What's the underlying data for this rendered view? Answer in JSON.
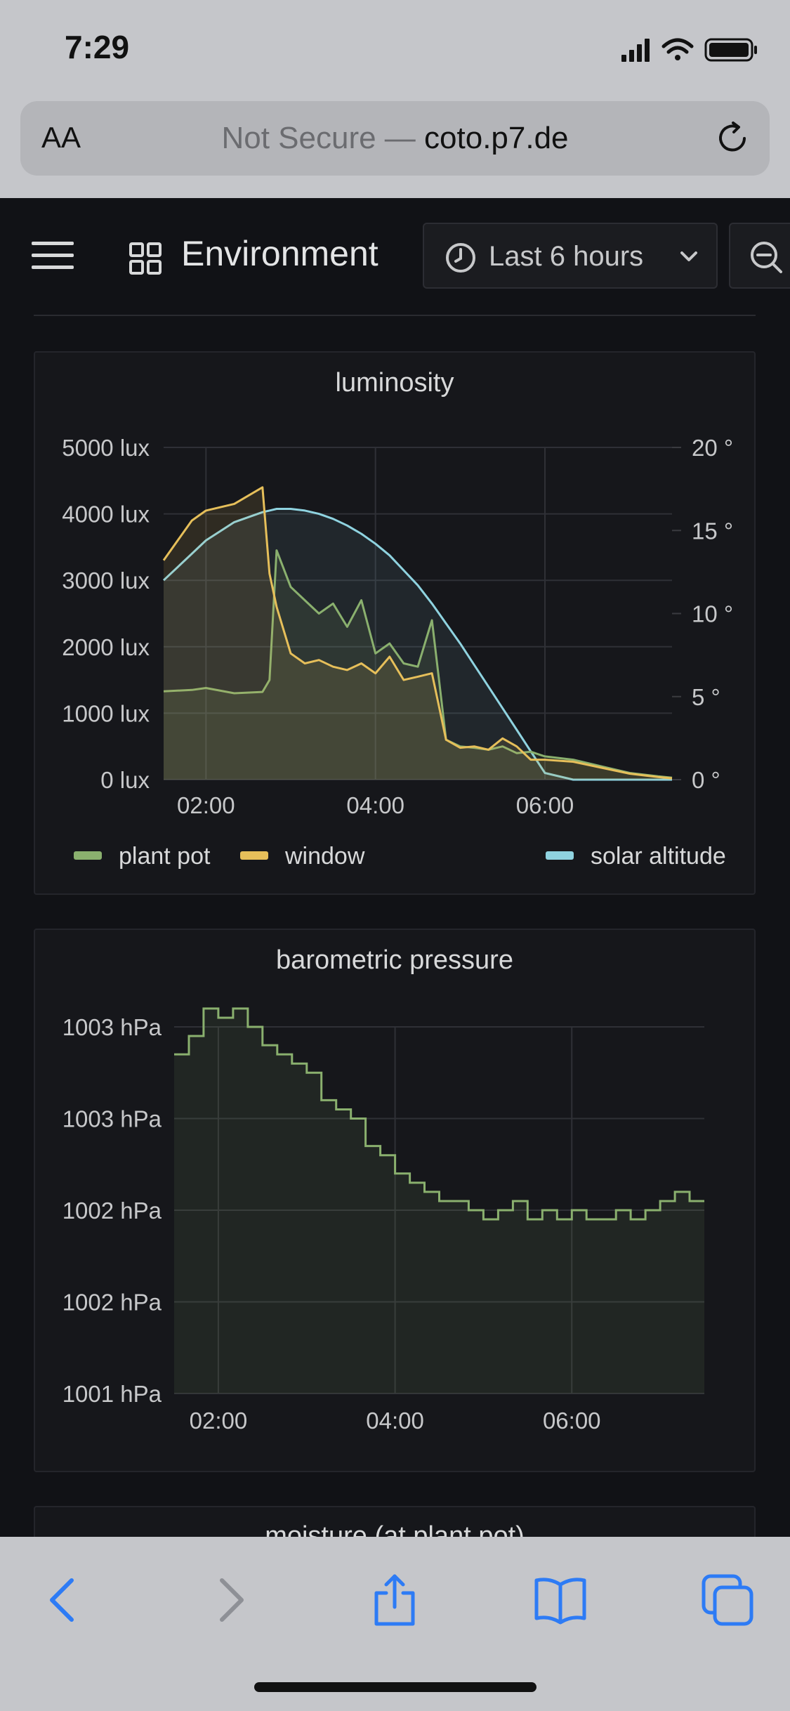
{
  "status_bar": {
    "time": "7:29"
  },
  "address_bar": {
    "aa_label": "AA",
    "not_secure": "Not Secure — ",
    "domain": "coto.p7.de"
  },
  "header": {
    "dashboard_title": "Environment",
    "time_range": "Last 6 hours"
  },
  "colors": {
    "plant_pot": "#8ab06e",
    "window": "#e6bf5a",
    "solar_altitude": "#8fd3e0",
    "accent_ios": "#2d7bf5"
  },
  "panels": {
    "luminosity": {
      "title": "luminosity",
      "y_ticks": [
        "5000 lux",
        "4000 lux",
        "3000 lux",
        "2000 lux",
        "1000 lux",
        "0 lux"
      ],
      "y2_ticks": [
        "20 °",
        "15 °",
        "10 °",
        "5 °",
        "0 °"
      ],
      "x_ticks": [
        "02:00",
        "04:00",
        "06:00"
      ],
      "legend": [
        "plant pot",
        "window",
        "solar altitude"
      ]
    },
    "pressure": {
      "title": "barometric pressure",
      "y_ticks": [
        "1003 hPa",
        "1003 hPa",
        "1002 hPa",
        "1002 hPa",
        "1001 hPa"
      ],
      "x_ticks": [
        "02:00",
        "04:00",
        "06:00"
      ]
    },
    "moisture": {
      "title": "moisture (at plant pot)"
    }
  },
  "chart_data": [
    {
      "type": "line",
      "title": "luminosity",
      "x": [
        "01:30",
        "01:50",
        "02:00",
        "02:20",
        "02:40",
        "02:45",
        "02:50",
        "03:00",
        "03:10",
        "03:20",
        "03:30",
        "03:40",
        "03:50",
        "04:00",
        "04:10",
        "04:20",
        "04:30",
        "04:40",
        "04:45",
        "04:50",
        "05:00",
        "05:10",
        "05:20",
        "05:30",
        "05:40",
        "05:50",
        "06:00",
        "06:20",
        "06:40",
        "07:00",
        "07:20",
        "07:30"
      ],
      "ylim": [
        0,
        5000
      ],
      "y2lim": [
        0,
        20
      ],
      "series": [
        {
          "name": "plant pot",
          "axis": "left",
          "values": [
            1330,
            1350,
            1380,
            1300,
            1320,
            1500,
            3450,
            2900,
            2700,
            2500,
            2650,
            2300,
            2700,
            1900,
            2050,
            1750,
            1700,
            2400,
            1500,
            600,
            500,
            480,
            450,
            500,
            400,
            420,
            350,
            300,
            200,
            100,
            50,
            30
          ]
        },
        {
          "name": "window",
          "axis": "left",
          "values": [
            3300,
            3900,
            4050,
            4150,
            4400,
            3100,
            2600,
            1900,
            1750,
            1800,
            1700,
            1650,
            1750,
            1600,
            1850,
            1500,
            1550,
            1600,
            1100,
            600,
            480,
            500,
            450,
            620,
            500,
            300,
            300,
            270,
            180,
            90,
            40,
            20
          ]
        },
        {
          "name": "solar altitude",
          "axis": "right",
          "values": [
            12,
            13.6,
            14.4,
            15.5,
            16.1,
            16.2,
            16.3,
            16.3,
            16.2,
            16.0,
            15.7,
            15.3,
            14.8,
            14.2,
            13.5,
            12.6,
            11.7,
            10.6,
            10.0,
            9.4,
            8.2,
            6.9,
            5.6,
            4.3,
            3.0,
            1.7,
            0.4,
            0,
            0,
            0,
            0,
            0
          ]
        }
      ]
    },
    {
      "type": "area",
      "title": "barometric pressure",
      "x": [
        "01:30",
        "01:40",
        "01:50",
        "02:00",
        "02:10",
        "02:20",
        "02:30",
        "02:40",
        "02:50",
        "03:00",
        "03:10",
        "03:20",
        "03:30",
        "03:40",
        "03:50",
        "04:00",
        "04:10",
        "04:20",
        "04:30",
        "04:40",
        "04:50",
        "05:00",
        "05:10",
        "05:20",
        "05:30",
        "05:40",
        "05:50",
        "06:00",
        "06:10",
        "06:20",
        "06:30",
        "06:40",
        "06:50",
        "07:00",
        "07:10",
        "07:20",
        "07:30"
      ],
      "ylim": [
        1001,
        1003
      ],
      "series": [
        {
          "name": "pressure",
          "values": [
            1002.85,
            1002.95,
            1003.1,
            1003.05,
            1003.1,
            1003.0,
            1002.9,
            1002.85,
            1002.8,
            1002.75,
            1002.6,
            1002.55,
            1002.5,
            1002.35,
            1002.3,
            1002.2,
            1002.15,
            1002.1,
            1002.05,
            1002.05,
            1002.0,
            1001.95,
            1002.0,
            1002.05,
            1001.95,
            1002.0,
            1001.95,
            1002.0,
            1001.95,
            1001.95,
            1002.0,
            1001.95,
            1002.0,
            1002.05,
            1002.1,
            1002.05,
            1002.05
          ]
        }
      ]
    }
  ]
}
